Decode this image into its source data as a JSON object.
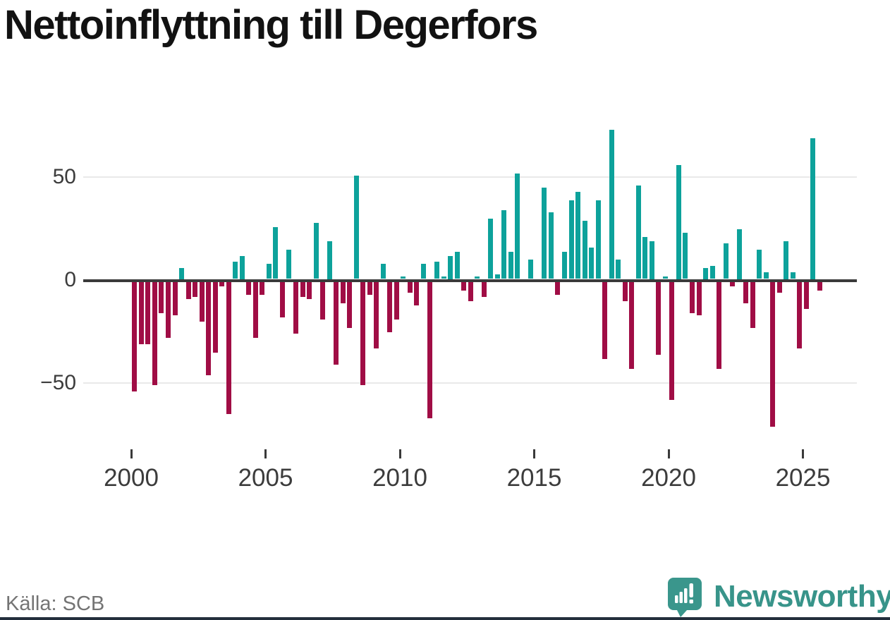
{
  "title": "Nettoinflyttning till Degerfors",
  "source": "Källa: SCB",
  "branding": {
    "logo_text": "Newsworthy",
    "logo_icon": "newsworthy-speech-bubble-bar-chart-icon",
    "logo_color": "#3a968c",
    "wordmark_color": "#38948a"
  },
  "chart_data": {
    "type": "bar",
    "title": "Nettoinflyttning till Degerfors",
    "frequency": "quarterly",
    "start": "2000Q1",
    "end": "2025Q3",
    "values": [
      -54,
      -31,
      -31,
      -51,
      -16,
      -28,
      -17,
      6,
      -9,
      -8,
      -20,
      -46,
      -35,
      -3,
      -65,
      9,
      12,
      -7,
      -28,
      -7,
      8,
      26,
      -18,
      15,
      -26,
      -8,
      -9,
      28,
      -19,
      19,
      -41,
      -11,
      -23,
      51,
      -51,
      -7,
      -33,
      8,
      -25,
      -19,
      2,
      -6,
      -12,
      8,
      -67,
      9,
      2,
      12,
      14,
      -5,
      -10,
      2,
      -8,
      30,
      3,
      34,
      14,
      52,
      0,
      10,
      0,
      45,
      33,
      -7,
      14,
      39,
      43,
      29,
      16,
      39,
      -38,
      73,
      10,
      -10,
      -43,
      46,
      21,
      19,
      -36,
      2,
      -58,
      56,
      23,
      -16,
      -17,
      6,
      7,
      -43,
      18,
      -3,
      25,
      -11,
      -23,
      15,
      4,
      -71,
      -6,
      19,
      4,
      -33,
      -14,
      69,
      -5
    ],
    "y_ticks": [
      "50",
      "0",
      "−50"
    ],
    "y_gridlines": [
      50,
      0,
      -50
    ],
    "ylim": [
      -75,
      80
    ],
    "x_tick_years": [
      "2000",
      "2005",
      "2010",
      "2015",
      "2020",
      "2025"
    ],
    "positive_color": "#0da29b",
    "negative_color": "#a00d45",
    "axis_color": "#3a3a3a",
    "grid": "horizontal"
  }
}
